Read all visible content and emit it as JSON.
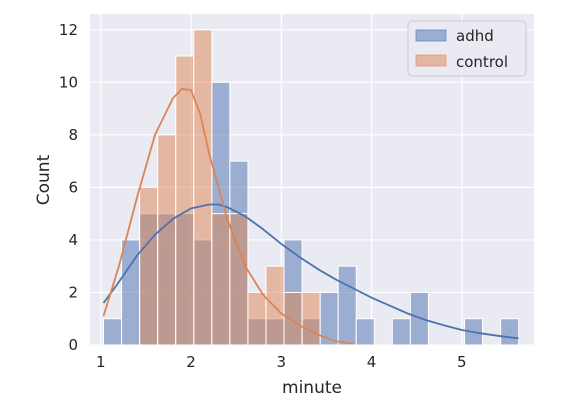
{
  "chart_data": {
    "type": "histogram",
    "xlabel": "minute",
    "ylabel": "Count",
    "xlim": [
      0.88,
      5.8
    ],
    "ylim": [
      0,
      12.6
    ],
    "xticks": [
      1,
      2,
      3,
      4,
      5
    ],
    "yticks": [
      0,
      2,
      4,
      6,
      8,
      10,
      12
    ],
    "grid": true,
    "legend_position": "top-right",
    "bins": [
      1.03,
      1.23,
      1.43,
      1.63,
      1.83,
      2.03,
      2.23,
      2.43,
      2.63,
      2.83,
      3.03,
      3.23,
      3.43,
      3.63,
      3.83,
      4.03,
      4.23,
      4.43,
      4.63,
      4.83,
      5.03,
      5.23,
      5.43,
      5.63
    ],
    "series": [
      {
        "name": "adhd",
        "color": "#4c72b0",
        "counts": [
          1,
          4,
          5,
          5,
          5,
          4,
          10,
          7,
          1,
          1,
          4,
          1,
          2,
          3,
          1,
          0,
          1,
          2,
          0,
          0,
          1,
          0,
          1
        ],
        "kde_x": [
          1.03,
          1.2,
          1.4,
          1.6,
          1.8,
          2.0,
          2.2,
          2.3,
          2.4,
          2.6,
          2.8,
          3.0,
          3.2,
          3.4,
          3.6,
          3.8,
          4.0,
          4.2,
          4.4,
          4.6,
          4.8,
          5.0,
          5.2,
          5.4,
          5.63
        ],
        "kde_y": [
          1.6,
          2.4,
          3.4,
          4.2,
          4.8,
          5.2,
          5.35,
          5.35,
          5.25,
          4.9,
          4.4,
          3.85,
          3.35,
          2.9,
          2.5,
          2.15,
          1.8,
          1.5,
          1.2,
          0.95,
          0.75,
          0.57,
          0.45,
          0.35,
          0.25
        ]
      },
      {
        "name": "control",
        "color": "#dd8452",
        "counts": [
          0,
          0,
          6,
          8,
          11,
          12,
          5,
          5,
          2,
          3,
          2,
          2,
          0,
          0,
          0,
          0,
          0,
          0,
          0,
          0,
          0,
          0,
          0
        ],
        "kde_x": [
          1.03,
          1.2,
          1.4,
          1.6,
          1.8,
          1.9,
          2.0,
          2.1,
          2.2,
          2.4,
          2.6,
          2.8,
          3.0,
          3.2,
          3.4,
          3.6,
          3.8
        ],
        "kde_y": [
          1.1,
          3.0,
          5.6,
          8.0,
          9.4,
          9.75,
          9.7,
          8.8,
          7.3,
          4.8,
          3.0,
          1.9,
          1.2,
          0.75,
          0.4,
          0.15,
          0.05
        ]
      }
    ]
  }
}
